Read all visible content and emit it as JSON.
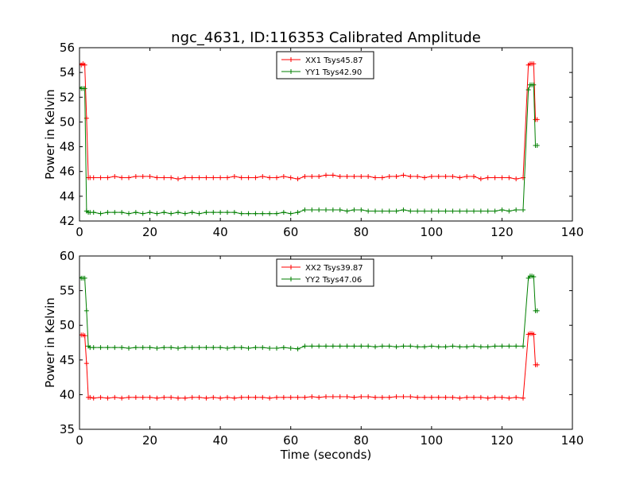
{
  "chart_data": {
    "title": "ngc_4631, ID:116353 Calibrated Amplitude",
    "xlabel": "Time (seconds)",
    "type": "line",
    "panels": [
      {
        "type": "line",
        "ylabel": "Power in Kelvin",
        "xlim": [
          0,
          140
        ],
        "ylim": [
          42,
          56
        ],
        "xticks": [
          0,
          20,
          40,
          60,
          80,
          100,
          120,
          140
        ],
        "yticks": [
          42,
          44,
          46,
          48,
          50,
          52,
          54,
          56
        ],
        "legend_position": "top-center",
        "series": [
          {
            "name": "XX1 Tsys45.87",
            "color": "#ff0000",
            "x": [
              0,
              0.5,
              1,
              1.5,
              2,
              2.5,
              3,
              4,
              6,
              8,
              10,
              12,
              14,
              16,
              18,
              20,
              22,
              24,
              26,
              28,
              30,
              32,
              34,
              36,
              38,
              40,
              42,
              44,
              46,
              48,
              50,
              52,
              54,
              56,
              58,
              60,
              62,
              64,
              66,
              68,
              70,
              72,
              74,
              76,
              78,
              80,
              82,
              84,
              86,
              88,
              90,
              92,
              94,
              96,
              98,
              100,
              102,
              104,
              106,
              108,
              110,
              112,
              114,
              116,
              118,
              120,
              122,
              124,
              126,
              127.5,
              128,
              128.5,
              129,
              129.5,
              130
            ],
            "y": [
              54.7,
              54.6,
              54.7,
              54.6,
              50.3,
              45.5,
              45.5,
              45.5,
              45.5,
              45.5,
              45.6,
              45.5,
              45.5,
              45.6,
              45.6,
              45.6,
              45.5,
              45.5,
              45.5,
              45.4,
              45.5,
              45.5,
              45.5,
              45.5,
              45.5,
              45.5,
              45.5,
              45.6,
              45.5,
              45.5,
              45.5,
              45.6,
              45.5,
              45.5,
              45.6,
              45.5,
              45.4,
              45.6,
              45.6,
              45.6,
              45.7,
              45.7,
              45.6,
              45.6,
              45.6,
              45.6,
              45.6,
              45.5,
              45.5,
              45.6,
              45.6,
              45.7,
              45.6,
              45.6,
              45.5,
              45.6,
              45.6,
              45.6,
              45.6,
              45.5,
              45.6,
              45.6,
              45.4,
              45.5,
              45.5,
              45.5,
              45.5,
              45.4,
              45.5,
              54.6,
              54.7,
              54.7,
              54.7,
              50.2,
              50.2
            ]
          },
          {
            "name": "YY1 Tsys42.90",
            "color": "#007f00",
            "x": [
              0,
              0.5,
              1,
              1.5,
              2,
              2.5,
              3,
              4,
              6,
              8,
              10,
              12,
              14,
              16,
              18,
              20,
              22,
              24,
              26,
              28,
              30,
              32,
              34,
              36,
              38,
              40,
              42,
              44,
              46,
              48,
              50,
              52,
              54,
              56,
              58,
              60,
              62,
              64,
              66,
              68,
              70,
              72,
              74,
              76,
              78,
              80,
              82,
              84,
              86,
              88,
              90,
              92,
              94,
              96,
              98,
              100,
              102,
              104,
              106,
              108,
              110,
              112,
              114,
              116,
              118,
              120,
              122,
              124,
              126,
              127.5,
              128,
              128.5,
              129,
              129.5,
              130
            ],
            "y": [
              52.8,
              52.7,
              52.7,
              52.7,
              42.8,
              42.7,
              42.7,
              42.7,
              42.6,
              42.7,
              42.7,
              42.7,
              42.6,
              42.7,
              42.6,
              42.7,
              42.6,
              42.7,
              42.6,
              42.7,
              42.6,
              42.7,
              42.6,
              42.7,
              42.7,
              42.7,
              42.7,
              42.7,
              42.6,
              42.6,
              42.6,
              42.6,
              42.6,
              42.6,
              42.7,
              42.6,
              42.7,
              42.9,
              42.9,
              42.9,
              42.9,
              42.9,
              42.9,
              42.8,
              42.9,
              42.9,
              42.8,
              42.8,
              42.8,
              42.8,
              42.8,
              42.9,
              42.8,
              42.8,
              42.8,
              42.8,
              42.8,
              42.8,
              42.8,
              42.8,
              42.8,
              42.8,
              42.8,
              42.8,
              42.8,
              42.9,
              42.8,
              42.9,
              42.9,
              52.6,
              53.0,
              53.0,
              53.0,
              48.1,
              48.1
            ]
          }
        ]
      },
      {
        "type": "line",
        "ylabel": "Power in Kelvin",
        "xlim": [
          0,
          140
        ],
        "ylim": [
          35,
          60
        ],
        "xticks": [
          0,
          20,
          40,
          60,
          80,
          100,
          120,
          140
        ],
        "yticks": [
          35,
          40,
          45,
          50,
          55,
          60
        ],
        "legend_position": "top-center",
        "series": [
          {
            "name": "XX2 Tsys39.87",
            "color": "#ff0000",
            "x": [
              0,
              0.5,
              1,
              1.5,
              2,
              2.5,
              3,
              4,
              6,
              8,
              10,
              12,
              14,
              16,
              18,
              20,
              22,
              24,
              26,
              28,
              30,
              32,
              34,
              36,
              38,
              40,
              42,
              44,
              46,
              48,
              50,
              52,
              54,
              56,
              58,
              60,
              62,
              64,
              66,
              68,
              70,
              72,
              74,
              76,
              78,
              80,
              82,
              84,
              86,
              88,
              90,
              92,
              94,
              96,
              98,
              100,
              102,
              104,
              106,
              108,
              110,
              112,
              114,
              116,
              118,
              120,
              122,
              124,
              126,
              127.5,
              128,
              128.5,
              129,
              129.5,
              130
            ],
            "y": [
              48.6,
              48.6,
              48.6,
              48.5,
              44.5,
              39.6,
              39.6,
              39.5,
              39.6,
              39.5,
              39.6,
              39.5,
              39.6,
              39.6,
              39.6,
              39.6,
              39.5,
              39.6,
              39.6,
              39.5,
              39.5,
              39.6,
              39.6,
              39.5,
              39.6,
              39.5,
              39.6,
              39.5,
              39.6,
              39.6,
              39.6,
              39.6,
              39.5,
              39.6,
              39.6,
              39.6,
              39.6,
              39.6,
              39.7,
              39.6,
              39.7,
              39.7,
              39.7,
              39.7,
              39.6,
              39.7,
              39.7,
              39.6,
              39.6,
              39.6,
              39.7,
              39.7,
              39.7,
              39.6,
              39.6,
              39.6,
              39.6,
              39.6,
              39.6,
              39.5,
              39.6,
              39.6,
              39.6,
              39.5,
              39.6,
              39.6,
              39.5,
              39.6,
              39.5,
              48.7,
              48.8,
              48.8,
              48.7,
              44.3,
              44.3
            ]
          },
          {
            "name": "YY2 Tsys47.06",
            "color": "#007f00",
            "x": [
              0,
              0.5,
              1,
              1.5,
              2,
              2.5,
              3,
              4,
              6,
              8,
              10,
              12,
              14,
              16,
              18,
              20,
              22,
              24,
              26,
              28,
              30,
              32,
              34,
              36,
              38,
              40,
              42,
              44,
              46,
              48,
              50,
              52,
              54,
              56,
              58,
              60,
              62,
              64,
              66,
              68,
              70,
              72,
              74,
              76,
              78,
              80,
              82,
              84,
              86,
              88,
              90,
              92,
              94,
              96,
              98,
              100,
              102,
              104,
              106,
              108,
              110,
              112,
              114,
              116,
              118,
              120,
              122,
              124,
              126,
              127.5,
              128,
              128.5,
              129,
              129.5,
              130
            ],
            "y": [
              56.9,
              56.8,
              56.8,
              56.8,
              52.1,
              47.0,
              46.8,
              46.8,
              46.8,
              46.8,
              46.8,
              46.8,
              46.7,
              46.8,
              46.8,
              46.8,
              46.7,
              46.8,
              46.8,
              46.7,
              46.8,
              46.8,
              46.8,
              46.8,
              46.8,
              46.8,
              46.7,
              46.8,
              46.8,
              46.7,
              46.8,
              46.8,
              46.7,
              46.7,
              46.8,
              46.7,
              46.6,
              47.0,
              47.0,
              47.0,
              47.0,
              47.0,
              47.0,
              47.0,
              47.0,
              47.0,
              47.0,
              46.9,
              47.0,
              47.0,
              46.9,
              47.0,
              47.0,
              46.9,
              46.9,
              47.0,
              46.9,
              46.9,
              47.0,
              46.9,
              46.9,
              47.0,
              46.9,
              46.9,
              47.0,
              47.0,
              47.0,
              47.0,
              47.0,
              56.8,
              57.1,
              57.1,
              57.0,
              52.1,
              52.1
            ]
          }
        ]
      }
    ]
  }
}
